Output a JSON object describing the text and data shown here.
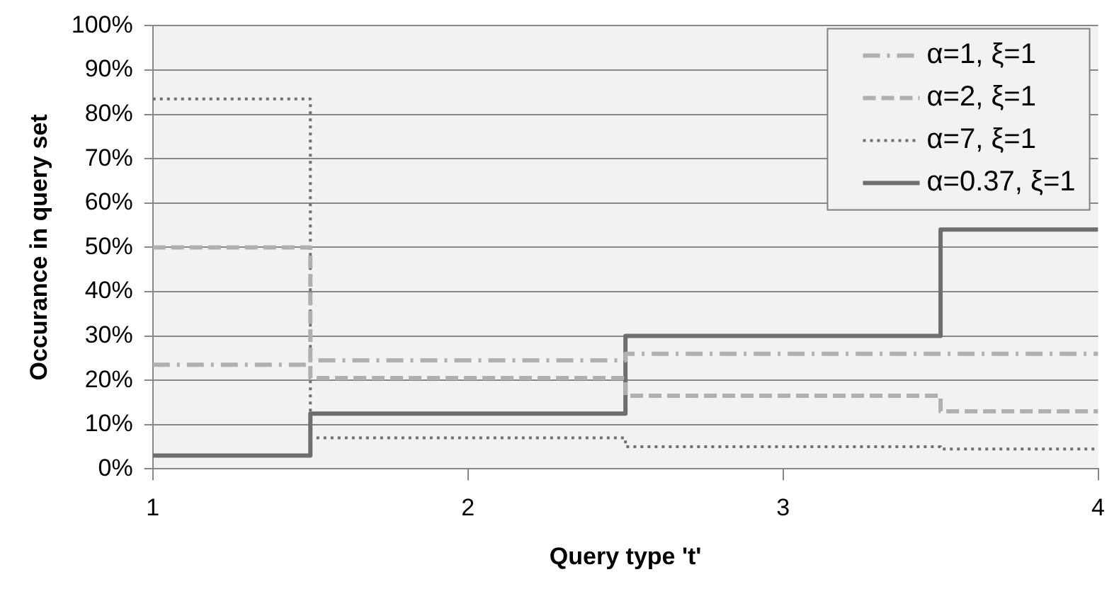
{
  "chart_data": {
    "type": "step",
    "xlabel": "Query type 't'",
    "ylabel": "Occurance in query set",
    "x": [
      1,
      2,
      3,
      4
    ],
    "xlim": [
      1,
      4
    ],
    "xticks": [
      1,
      2,
      3,
      4
    ],
    "ylim": [
      0,
      100
    ],
    "yticks": [
      {
        "value": 0,
        "label": "0%"
      },
      {
        "value": 10,
        "label": "10%"
      },
      {
        "value": 20,
        "label": "20%"
      },
      {
        "value": 30,
        "label": "30%"
      },
      {
        "value": 40,
        "label": "40%"
      },
      {
        "value": 50,
        "label": "50%"
      },
      {
        "value": 60,
        "label": "60%"
      },
      {
        "value": 70,
        "label": "70%"
      },
      {
        "value": 80,
        "label": "80%"
      },
      {
        "value": 90,
        "label": "90%"
      },
      {
        "value": 100,
        "label": "100%"
      }
    ],
    "grid": "y",
    "legend": "top right",
    "marker": "none",
    "series": [
      {
        "name": "α=1, ξ=1",
        "color": "#b0b0b0",
        "line_style": "dashdot",
        "values": [
          23.5,
          24.5,
          26,
          26
        ]
      },
      {
        "name": "α=2, ξ=1",
        "color": "#b0b0b0",
        "line_style": "dashed",
        "values": [
          50,
          20.5,
          16.5,
          13
        ]
      },
      {
        "name": "α=7, ξ=1",
        "color": "#707070",
        "line_style": "dotted",
        "values": [
          83.5,
          7,
          5,
          4.5
        ]
      },
      {
        "name": "α=0.37, ξ=1",
        "color": "#6e6e6e",
        "line_style": "solid",
        "values": [
          3,
          12.5,
          30,
          54
        ]
      }
    ]
  }
}
